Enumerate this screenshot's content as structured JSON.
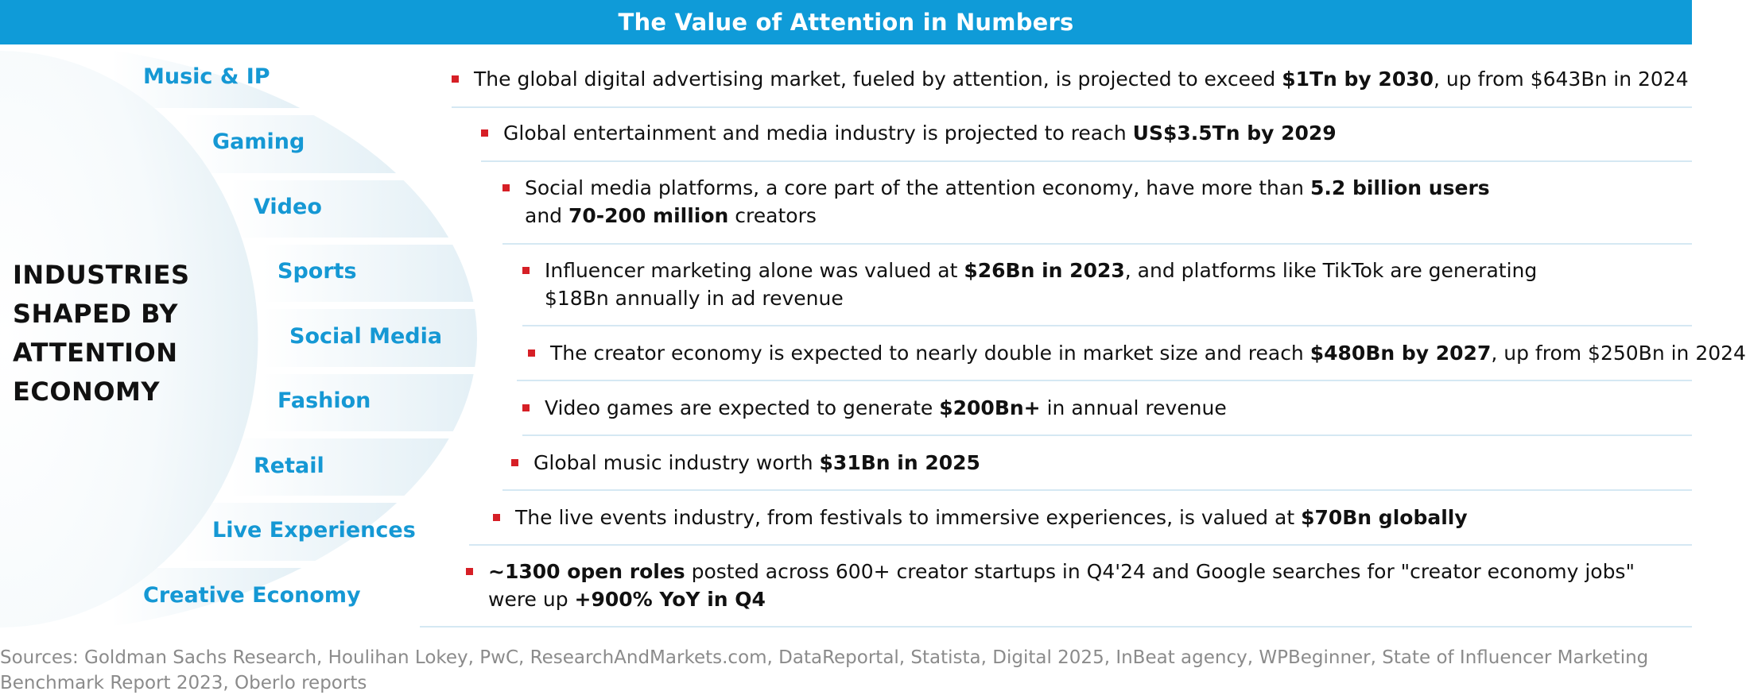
{
  "header": {
    "title": "The Value of Attention in Numbers"
  },
  "left_title_lines": [
    "INDUSTRIES",
    "SHAPED BY",
    "ATTENTION",
    "ECONOMY"
  ],
  "industries": [
    "Music & IP",
    "Gaming",
    "Video",
    "Sports",
    "Social Media",
    "Fashion",
    "Retail",
    "Live Experiences",
    "Creative Economy"
  ],
  "bullets": [
    {
      "lines": [
        [
          [
            "The global digital advertising market, fueled by attention, is projected to exceed ",
            false
          ],
          [
            "$1Tn by 2030",
            true
          ],
          [
            ", up from $643Bn in 2024",
            false
          ]
        ]
      ]
    },
    {
      "lines": [
        [
          [
            "Global entertainment and media industry is projected to reach ",
            false
          ],
          [
            "US$3.5Tn by 2029",
            true
          ]
        ]
      ]
    },
    {
      "lines": [
        [
          [
            "Social media platforms, a core part of the attention economy, have more than ",
            false
          ],
          [
            "5.2 billion users",
            true
          ]
        ],
        [
          [
            "and ",
            false
          ],
          [
            "70-200 million",
            true
          ],
          [
            " creators",
            false
          ]
        ]
      ]
    },
    {
      "lines": [
        [
          [
            "Influencer marketing alone was valued at ",
            false
          ],
          [
            "$26Bn in 2023",
            true
          ],
          [
            ", and platforms like TikTok are generating",
            false
          ]
        ],
        [
          [
            "$18Bn annually in ad revenue",
            false
          ]
        ]
      ]
    },
    {
      "lines": [
        [
          [
            "The creator economy is expected to nearly double in market size and reach ",
            false
          ],
          [
            "$480Bn by 2027",
            true
          ],
          [
            ", up from $250Bn in 2024",
            false
          ]
        ]
      ]
    },
    {
      "lines": [
        [
          [
            "Video games are expected to generate ",
            false
          ],
          [
            "$200Bn+",
            true
          ],
          [
            " in annual revenue",
            false
          ]
        ]
      ]
    },
    {
      "lines": [
        [
          [
            "Global music industry worth ",
            false
          ],
          [
            "$31Bn in 2025",
            true
          ]
        ]
      ]
    },
    {
      "lines": [
        [
          [
            "The live events industry, from festivals to immersive experiences, is valued at ",
            false
          ],
          [
            "$70Bn globally",
            true
          ]
        ]
      ]
    },
    {
      "lines": [
        [
          [
            "~1300 open roles",
            true
          ],
          [
            " posted across 600+ creator startups in Q4'24 and Google searches for \"creator economy jobs\"",
            false
          ]
        ],
        [
          [
            "were up ",
            false
          ],
          [
            "+900% YoY in Q4",
            true
          ]
        ]
      ]
    }
  ],
  "sources": "Sources: Goldman Sachs Research, Houlihan Lokey, PwC, ResearchAndMarkets.com, DataReportal, Statista, Digital 2025, InBeat agency, WPBeginner, State of Influencer Marketing Benchmark Report 2023, Oberlo reports",
  "colors": {
    "header_bg": "#0f9bd8",
    "industry_text": "#1598d4",
    "bullet_square": "#d61f26",
    "rule": "#d5e8f3"
  }
}
